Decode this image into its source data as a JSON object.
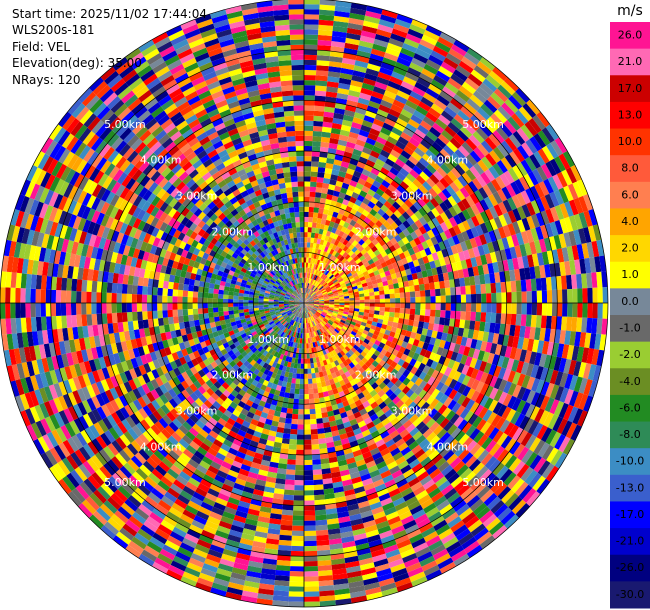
{
  "info": {
    "start_time": "Start time: 2025/11/02 17:44:04",
    "instrument": "WLS200s-181",
    "field": "Field: VEL",
    "elevation": "Elevation(deg): 35.00",
    "nrays": "NRays: 120"
  },
  "chart_data": {
    "type": "heatmap",
    "projection": "polar-ppi",
    "field": "VEL",
    "units": "m/s",
    "n_rays": 120,
    "max_range_km": 6.0,
    "range_rings_km": [
      1,
      2,
      3,
      4,
      5,
      6
    ],
    "ring_labels": [
      "1.00km",
      "2.00km",
      "3.00km",
      "4.00km",
      "5.00km"
    ],
    "colorbar": {
      "unit_label": "m/s",
      "vmin": -30.0,
      "vmax": 30.0,
      "tick_labels": [
        "26.0",
        "21.0",
        "17.0",
        "13.0",
        "10.0",
        "8.0",
        "6.0",
        "4.0",
        "2.0",
        "1.0",
        "0.0",
        "-1.0",
        "-2.0",
        "-4.0",
        "-6.0",
        "-8.0",
        "-10.0",
        "-13.0",
        "-17.0",
        "-21.0",
        "-26.0",
        "-30.0"
      ],
      "colors": [
        "#ff1493",
        "#ff69b4",
        "#cc0000",
        "#ff0000",
        "#ff3300",
        "#ff5a3a",
        "#ff7f50",
        "#ffa500",
        "#ffd700",
        "#ffff00",
        "#778899",
        "#696969",
        "#9acd32",
        "#6b8e23",
        "#228b22",
        "#2e8b57",
        "#3c8dc4",
        "#3a5fcd",
        "#0000ff",
        "#0000cd",
        "#000080",
        "#191970"
      ]
    },
    "pattern": {
      "near_field_km": 1.9,
      "negative_sector_deg": [
        180,
        360
      ],
      "positive_sector_deg": [
        0,
        180
      ],
      "far_field": "noise"
    }
  }
}
